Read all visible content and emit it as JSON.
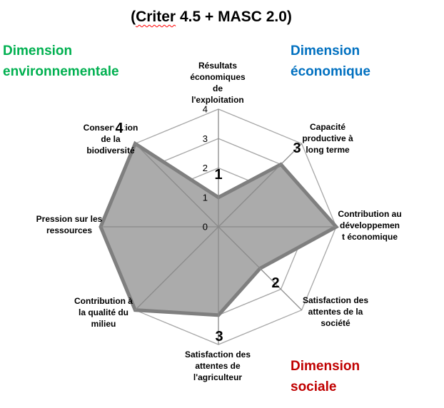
{
  "title": {
    "part_open": "(",
    "word_underlined": "Criter",
    "part_rest": " 4.5 + MASC 2.0)",
    "spellcheck_color": "#FF0000"
  },
  "dimension_labels": {
    "environnementale": {
      "text": "Dimension\nenvironnementale",
      "color": "#00B050"
    },
    "economique": {
      "text": "Dimension\néconomique",
      "color": "#0070C0"
    },
    "sociale": {
      "text": "Dimension\nsociale",
      "color": "#C00000"
    }
  },
  "chart_data": {
    "type": "radar",
    "title": "(Criter 4.5 + MASC 2.0)",
    "r_axis": {
      "min": 0,
      "max": 4,
      "ticks": [
        0,
        1,
        2,
        3,
        4
      ]
    },
    "categories": [
      "Résultats économiques de l'exploitation",
      "Capacité productive à long terme",
      "Contribution au développement économique",
      "Satisfaction des attentes de la société",
      "Satisfaction des attentes de l'agriculteur",
      "Contribution à la qualité du milieu",
      "Pression sur les ressources",
      "Conservation de la biodiversité"
    ],
    "category_display": [
      "Résultats\néconomiques\nde\nl'exploitation",
      "Capacité\nproductive à\nlong terme",
      "Contribution au\ndéveloppemen\nt économique",
      "Satisfaction des\nattentes de la\nsociété",
      "Satisfaction des\nattentes de\nl'agriculteur",
      "Contribution à\nla qualité du\nmilieu",
      "Pression sur les\nressources",
      "Conservation\nde la\nbiodiversité"
    ],
    "values": [
      1,
      3,
      4,
      2,
      3,
      4,
      4,
      4
    ],
    "point_label_visible": [
      true,
      true,
      false,
      true,
      true,
      false,
      false,
      true
    ],
    "legend": "none",
    "grid": "octagonal-rings",
    "colors": {
      "fill": "#ABABAB",
      "outline": "#7F7F7F",
      "grid": "#A6A6A6",
      "spoke": "#8A8A8A",
      "text": "#000000"
    }
  }
}
